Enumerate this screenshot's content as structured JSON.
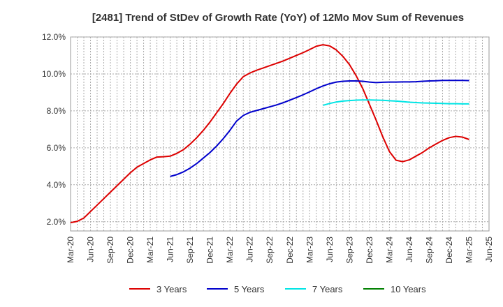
{
  "chart_data": {
    "type": "line",
    "title": "[2481]  Trend of StDev of Growth Rate (YoY) of 12Mo Mov Sum of Revenues",
    "xlabel": "",
    "ylabel": "",
    "ylim": [
      1.5,
      12.0
    ],
    "y_ticks": [
      2.0,
      4.0,
      6.0,
      8.0,
      10.0,
      12.0
    ],
    "y_tick_labels": [
      "2.0%",
      "4.0%",
      "6.0%",
      "8.0%",
      "10.0%",
      "12.0%"
    ],
    "x_tick_labels": [
      "Mar-20",
      "Jun-20",
      "Sep-20",
      "Dec-20",
      "Mar-21",
      "Jun-21",
      "Sep-21",
      "Dec-21",
      "Mar-22",
      "Jun-22",
      "Sep-22",
      "Dec-22",
      "Mar-23",
      "Jun-23",
      "Sep-23",
      "Dec-23",
      "Mar-24",
      "Jun-24",
      "Sep-24",
      "Dec-24",
      "Mar-25",
      "Jun-25"
    ],
    "grid": true,
    "legend_position": "bottom",
    "series": [
      {
        "name": "3 Years",
        "color": "#dd0000",
        "start_index": 0,
        "values": [
          1.95,
          2.02,
          2.2,
          2.55,
          2.9,
          3.25,
          3.6,
          3.95,
          4.3,
          4.65,
          4.95,
          5.15,
          5.35,
          5.5,
          5.52,
          5.55,
          5.7,
          5.9,
          6.2,
          6.55,
          6.95,
          7.4,
          7.9,
          8.4,
          8.95,
          9.45,
          9.85,
          10.05,
          10.2,
          10.32,
          10.45,
          10.57,
          10.7,
          10.85,
          11.0,
          11.15,
          11.32,
          11.5,
          11.58,
          11.52,
          11.3,
          10.95,
          10.5,
          9.9,
          9.2,
          8.35,
          7.5,
          6.6,
          5.8,
          5.33,
          5.25,
          5.35,
          5.55,
          5.75,
          6.0,
          6.2,
          6.4,
          6.55,
          6.62,
          6.58,
          6.45
        ]
      },
      {
        "name": "5 Years",
        "color": "#0000cc",
        "start_index": 15,
        "values": [
          4.45,
          4.55,
          4.7,
          4.9,
          5.15,
          5.45,
          5.75,
          6.1,
          6.5,
          6.95,
          7.45,
          7.75,
          7.92,
          8.02,
          8.12,
          8.22,
          8.32,
          8.44,
          8.58,
          8.72,
          8.87,
          9.03,
          9.2,
          9.35,
          9.47,
          9.56,
          9.6,
          9.62,
          9.62,
          9.6,
          9.56,
          9.53,
          9.55,
          9.56,
          9.56,
          9.57,
          9.57,
          9.58,
          9.6,
          9.62,
          9.63,
          9.65,
          9.65,
          9.65,
          9.65,
          9.64
        ]
      },
      {
        "name": "7 Years",
        "color": "#00e5e5",
        "start_index": 38,
        "values": [
          8.3,
          8.4,
          8.48,
          8.53,
          8.56,
          8.58,
          8.59,
          8.59,
          8.58,
          8.57,
          8.55,
          8.53,
          8.5,
          8.47,
          8.45,
          8.43,
          8.42,
          8.41,
          8.4,
          8.39,
          8.39,
          8.38,
          8.38
        ]
      },
      {
        "name": "10 Years",
        "color": "#008000",
        "start_index": 0,
        "values": []
      }
    ]
  }
}
